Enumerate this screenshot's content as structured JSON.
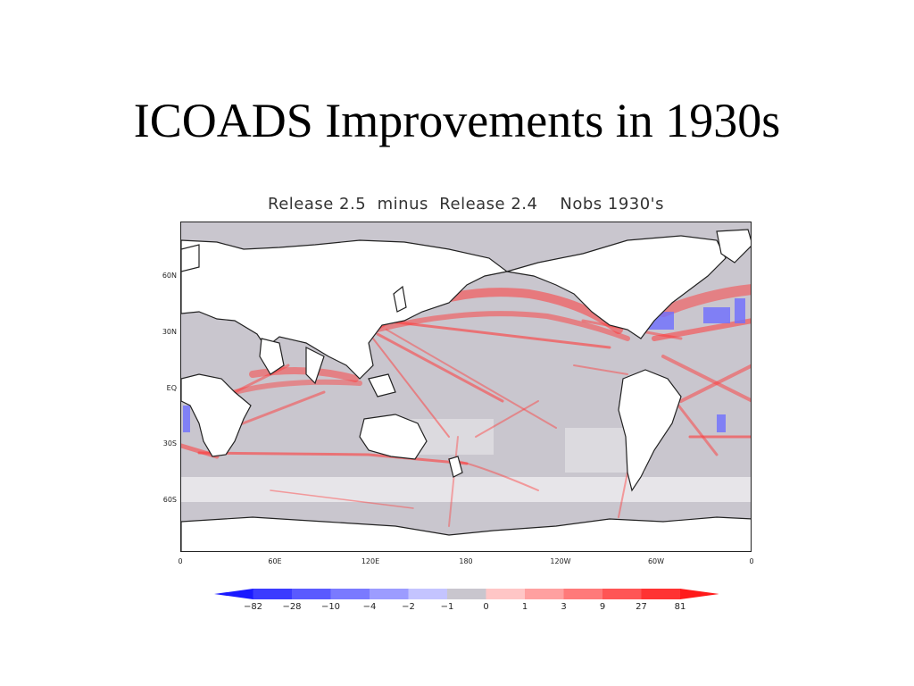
{
  "slide": {
    "title": "ICOADS Improvements in 1930s"
  },
  "map": {
    "title": "Release 2.5  minus  Release 2.4    Nobs 1930's",
    "lat_labels": [
      "60N",
      "30N",
      "EQ",
      "30S",
      "60S"
    ],
    "lon_labels": [
      "0",
      "60E",
      "120E",
      "180",
      "120W",
      "60W",
      "0"
    ]
  },
  "colorbar": {
    "labels": [
      "−82",
      "−28",
      "−10",
      "−4",
      "−2",
      "−1",
      "0",
      "1",
      "3",
      "9",
      "27",
      "81"
    ],
    "colors": [
      "#1a1aff",
      "#3b3bff",
      "#5a5aff",
      "#7a7aff",
      "#9c9cff",
      "#c4c4ff",
      "#c9c6ce",
      "#ffc6c6",
      "#ffa0a0",
      "#ff7a7a",
      "#ff5555",
      "#ff3333",
      "#ff1a1a"
    ],
    "ocean_gray": "#c9c6ce",
    "land_white": "#ffffff",
    "track_red": "#ff3a3a",
    "patch_blue": "#6e6eff"
  }
}
